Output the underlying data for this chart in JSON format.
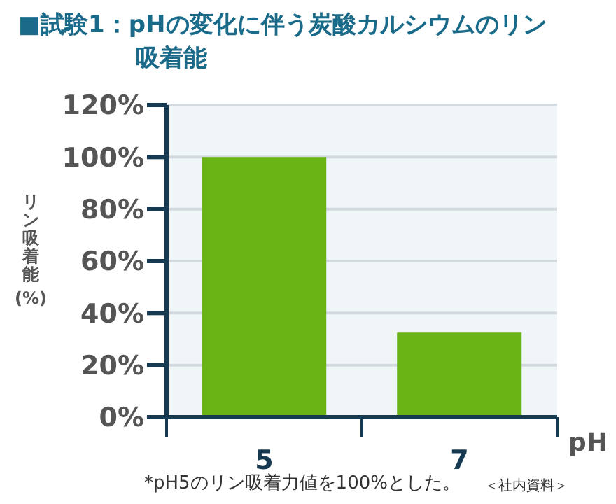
{
  "chart_data": {
    "type": "bar",
    "title": "■試験1：pHの変化に伴う炭酸カルシウムのリン吸着能",
    "xlabel": "pH",
    "ylabel": "リン吸着能 (%)",
    "categories": [
      "5",
      "7"
    ],
    "values": [
      100,
      32.5
    ],
    "color": "#6ab416",
    "ylim": [
      0,
      120
    ],
    "yticks": [
      {
        "value": 0,
        "label": "0%"
      },
      {
        "value": 20,
        "label": "20%"
      },
      {
        "value": 40,
        "label": "40%"
      },
      {
        "value": 60,
        "label": "60%"
      },
      {
        "value": 80,
        "label": "80%"
      },
      {
        "value": 100,
        "label": "100%"
      },
      {
        "value": 120,
        "label": "120%"
      }
    ],
    "grid": "y",
    "legend": false,
    "annotations": [
      "*pH5のリン吸着力値を100%とした。",
      "＜社内資料＞"
    ]
  }
}
